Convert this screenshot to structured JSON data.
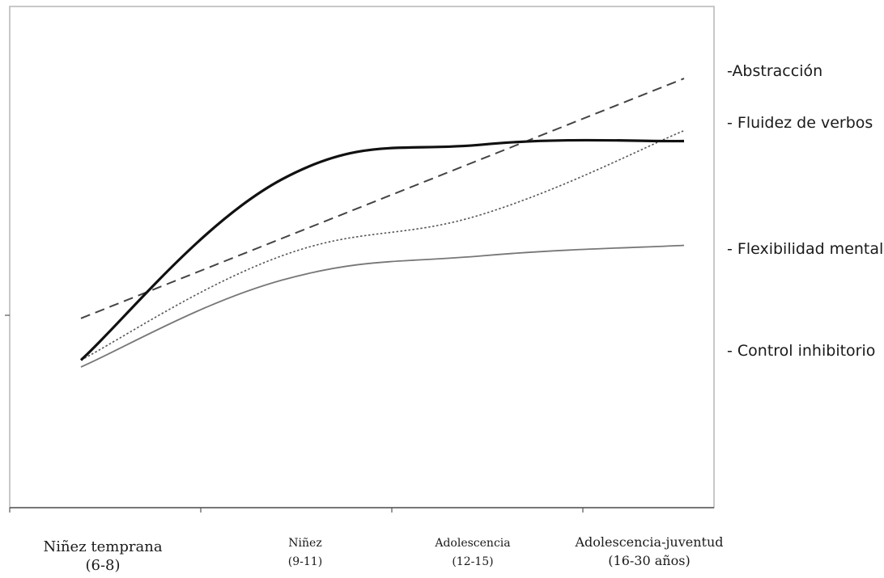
{
  "chart_data": {
    "type": "line",
    "title": "",
    "xlabel": "",
    "ylabel": "",
    "grid": false,
    "legend_placement": "right",
    "categories": [
      {
        "name": "Niñez temprana",
        "range": "(6-8)"
      },
      {
        "name": "Niñez",
        "range": "(9-11)"
      },
      {
        "name": "Adolescencia",
        "range": "(12-15)"
      },
      {
        "name": "Adolescencia-juventud",
        "range": "(16-30 años)"
      }
    ],
    "series": [
      {
        "name": "-Abstracción",
        "style": "dashed",
        "color": "#444444",
        "values": [
          0.34,
          0.56,
          0.79,
          1.03
        ]
      },
      {
        "name": "- Fluidez de verbos",
        "style": "dotted",
        "color": "#555555",
        "values": [
          0.22,
          0.52,
          0.64,
          0.88
        ]
      },
      {
        "name": "- Flexibilidad mental",
        "style": "bold",
        "color": "#111111",
        "values": [
          0.22,
          0.74,
          0.84,
          0.85
        ]
      },
      {
        "name": "- Control inhibitorio",
        "style": "thin",
        "color": "#777777",
        "values": [
          0.2,
          0.45,
          0.52,
          0.55
        ]
      }
    ]
  }
}
